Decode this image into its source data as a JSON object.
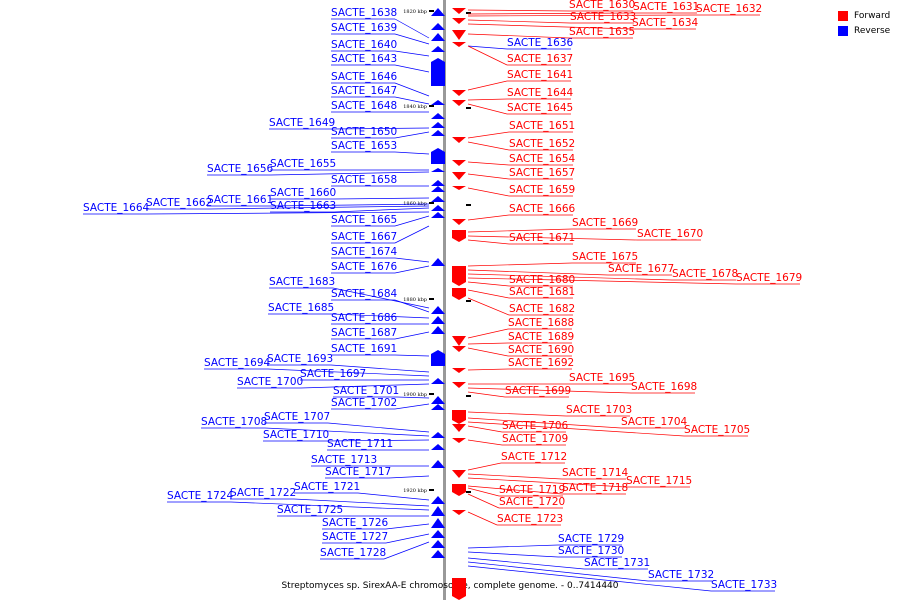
{
  "legend": [
    {
      "label": "Forward",
      "color": "#ff0000"
    },
    {
      "label": "Reverse",
      "color": "#0000ff"
    }
  ],
  "caption": "Streptomyces sp. SirexAA-E chromosome, complete genome. - 0..7414440",
  "ticks": [
    "1820 kbp",
    "1840 kbp",
    "1860 kbp",
    "1880 kbp",
    "1900 kbp",
    "1920 kbp"
  ],
  "colors": {
    "forward": "#ff0000",
    "reverse": "#0000ff",
    "axis": "#999999"
  },
  "forward_genes": [
    "SACTE_1630",
    "SACTE_1631",
    "SACTE_1632",
    "SACTE_1633",
    "SACTE_1634",
    "SACTE_1635",
    "SACTE_1637",
    "SACTE_1641",
    "SACTE_1644",
    "SACTE_1645",
    "SACTE_1651",
    "SACTE_1652",
    "SACTE_1654",
    "SACTE_1657",
    "SACTE_1659",
    "SACTE_1666",
    "SACTE_1669",
    "SACTE_1670",
    "SACTE_1671",
    "SACTE_1675",
    "SACTE_1677",
    "SACTE_1678",
    "SACTE_1679",
    "SACTE_1680",
    "SACTE_1681",
    "SACTE_1682",
    "SACTE_1688",
    "SACTE_1689",
    "SACTE_1690",
    "SACTE_1692",
    "SACTE_1695",
    "SACTE_1698",
    "SACTE_1699",
    "SACTE_1703",
    "SACTE_1704",
    "SACTE_1705",
    "SACTE_1706",
    "SACTE_1709",
    "SACTE_1712",
    "SACTE_1714",
    "SACTE_1715",
    "SACTE_1718",
    "SACTE_1719",
    "SACTE_1720",
    "SACTE_1723"
  ],
  "reverse_genes": [
    "SACTE_1636",
    "SACTE_1638",
    "SACTE_1639",
    "SACTE_1640",
    "SACTE_1643",
    "SACTE_1646",
    "SACTE_1647",
    "SACTE_1648",
    "SACTE_1649",
    "SACTE_1650",
    "SACTE_1653",
    "SACTE_1655",
    "SACTE_1656",
    "SACTE_1658",
    "SACTE_1660",
    "SACTE_1661",
    "SACTE_1662",
    "SACTE_1663",
    "SACTE_1664",
    "SACTE_1665",
    "SACTE_1667",
    "SACTE_1674",
    "SACTE_1676",
    "SACTE_1683",
    "SACTE_1684",
    "SACTE_1685",
    "SACTE_1686",
    "SACTE_1687",
    "SACTE_1691",
    "SACTE_1693",
    "SACTE_1694",
    "SACTE_1697",
    "SACTE_1700",
    "SACTE_1701",
    "SACTE_1702",
    "SACTE_1707",
    "SACTE_1708",
    "SACTE_1710",
    "SACTE_1711",
    "SACTE_1713",
    "SACTE_1717",
    "SACTE_1721",
    "SACTE_1722",
    "SACTE_1724",
    "SACTE_1725",
    "SACTE_1726",
    "SACTE_1727",
    "SACTE_1728",
    "SACTE_1729",
    "SACTE_1730",
    "SACTE_1731",
    "SACTE_1732",
    "SACTE_1733"
  ]
}
